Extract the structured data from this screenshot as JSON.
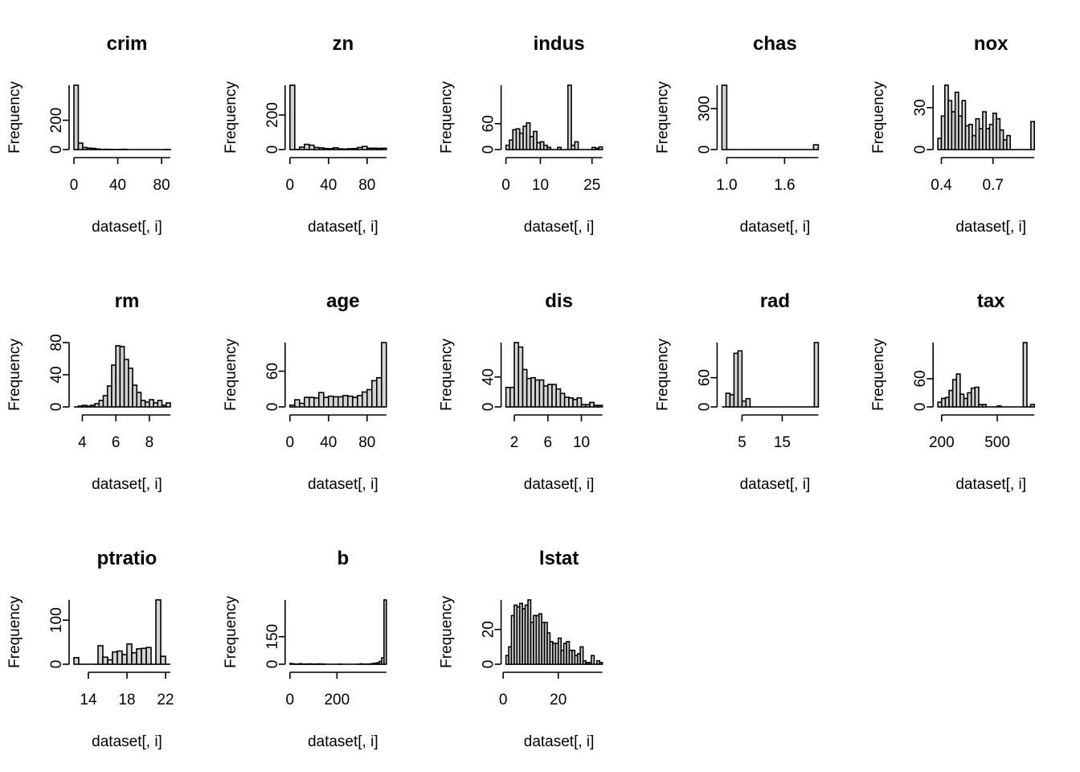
{
  "figure": {
    "background": "#ffffff",
    "bar_fill": "#d3d3d3",
    "bar_stroke": "#000000"
  },
  "chart_data": [
    {
      "type": "bar",
      "title": "crim",
      "xlabel": "dataset[, i]",
      "ylabel": "Frequency",
      "bin_start": 0,
      "bin_width": 4,
      "values": [
        439,
        44,
        14,
        10,
        8,
        4,
        1,
        2,
        1,
        0,
        1,
        2,
        0,
        0,
        0,
        0,
        0,
        0,
        0,
        0,
        0,
        1
      ],
      "xticks": [
        0,
        40,
        80
      ],
      "yticks": [
        0,
        200
      ],
      "xlim": [
        0,
        90
      ],
      "ylim": [
        0,
        439
      ]
    },
    {
      "type": "bar",
      "title": "zn",
      "xlabel": "dataset[, i]",
      "ylabel": "Frequency",
      "bin_start": 0,
      "bin_width": 5,
      "values": [
        372,
        1,
        14,
        30,
        25,
        12,
        10,
        6,
        5,
        10,
        4,
        3,
        5,
        6,
        12,
        18,
        8,
        8,
        7,
        8
      ],
      "xticks": [
        0,
        40,
        80
      ],
      "yticks": [
        0,
        200
      ],
      "xlim": [
        0,
        100
      ],
      "ylim": [
        0,
        372
      ]
    },
    {
      "type": "bar",
      "title": "indus",
      "xlabel": "dataset[, i]",
      "ylabel": "Frequency",
      "bin_start": 0,
      "bin_width": 1,
      "values": [
        10,
        22,
        46,
        48,
        38,
        54,
        62,
        30,
        42,
        16,
        18,
        10,
        5,
        0,
        0,
        5,
        0,
        0,
        149,
        10,
        18,
        0,
        0,
        0,
        0,
        5,
        3,
        6
      ],
      "xticks": [
        0,
        10,
        25
      ],
      "yticks": [
        0,
        60
      ],
      "xlim": [
        0,
        28
      ],
      "ylim": [
        0,
        149
      ]
    },
    {
      "type": "bar",
      "title": "chas",
      "xlabel": "dataset[, i]",
      "ylabel": "Frequency",
      "bin_start": 0.95,
      "bin_width": 0.05,
      "values": [
        471,
        0,
        0,
        0,
        0,
        0,
        0,
        0,
        0,
        0,
        0,
        0,
        0,
        0,
        0,
        0,
        0,
        0,
        0,
        35
      ],
      "xticks": [
        "1.0",
        "1.6"
      ],
      "yticks": [
        0,
        300
      ],
      "xlim": [
        1,
        2
      ],
      "ylim": [
        0,
        471
      ]
    },
    {
      "type": "bar",
      "title": "nox",
      "xlabel": "dataset[, i]",
      "ylabel": "Frequency",
      "bin_start": 0.38,
      "bin_width": 0.02,
      "values": [
        8,
        24,
        46,
        35,
        27,
        41,
        24,
        35,
        17,
        18,
        10,
        22,
        15,
        27,
        15,
        18,
        26,
        22,
        14,
        7,
        10,
        0,
        0,
        0,
        0,
        0,
        0,
        20
      ],
      "xticks": [
        "0.4",
        "0.7"
      ],
      "yticks": [
        0,
        30
      ],
      "xlim": [
        0.38,
        0.88
      ],
      "ylim": [
        0,
        46
      ]
    },
    {
      "type": "bar",
      "title": "rm",
      "xlabel": "dataset[, i]",
      "ylabel": "Frequency",
      "bin_start": 3.5,
      "bin_width": 0.25,
      "values": [
        0,
        1,
        2,
        1,
        2,
        4,
        8,
        14,
        26,
        52,
        76,
        75,
        59,
        48,
        27,
        18,
        8,
        6,
        9,
        5,
        8,
        2,
        5
      ],
      "xticks": [
        4,
        6,
        8
      ],
      "yticks": [
        0,
        40,
        80
      ],
      "xlim": [
        3.5,
        9.25
      ],
      "ylim": [
        0,
        80
      ]
    },
    {
      "type": "bar",
      "title": "age",
      "xlabel": "dataset[, i]",
      "ylabel": "Frequency",
      "bin_start": 0,
      "bin_width": 5,
      "values": [
        3,
        12,
        6,
        16,
        16,
        15,
        24,
        16,
        18,
        17,
        17,
        19,
        18,
        16,
        19,
        25,
        29,
        44,
        49,
        108
      ],
      "xticks": [
        0,
        40,
        80
      ],
      "yticks": [
        0,
        60
      ],
      "xlim": [
        0,
        100
      ],
      "ylim": [
        0,
        108
      ]
    },
    {
      "type": "bar",
      "title": "dis",
      "xlabel": "dataset[, i]",
      "ylabel": "Frequency",
      "bin_start": 1,
      "bin_width": 0.5,
      "values": [
        26,
        26,
        86,
        80,
        50,
        38,
        39,
        36,
        36,
        28,
        30,
        30,
        24,
        18,
        13,
        12,
        10,
        12,
        3,
        3,
        6,
        2,
        2
      ],
      "xticks": [
        2,
        6,
        10
      ],
      "yticks": [
        0,
        40
      ],
      "xlim": [
        1,
        12.5
      ],
      "ylim": [
        0,
        86
      ]
    },
    {
      "type": "bar",
      "title": "rad",
      "xlabel": "dataset[, i]",
      "ylabel": "Frequency",
      "bin_start": 0,
      "bin_width": 1,
      "values": [
        0,
        28,
        25,
        110,
        115,
        12,
        17,
        0,
        0,
        0,
        0,
        0,
        0,
        0,
        0,
        0,
        0,
        0,
        0,
        0,
        0,
        0,
        0,
        132
      ],
      "xticks": [
        5,
        15
      ],
      "yticks": [
        0,
        60
      ],
      "xlim": [
        0,
        24
      ],
      "ylim": [
        0,
        132
      ]
    },
    {
      "type": "bar",
      "title": "tax",
      "xlabel": "dataset[, i]",
      "ylabel": "Frequency",
      "bin_start": 180,
      "bin_width": 20,
      "values": [
        10,
        18,
        20,
        35,
        58,
        70,
        27,
        18,
        30,
        40,
        42,
        5,
        5,
        0,
        0,
        0,
        2,
        0,
        0,
        0,
        0,
        0,
        0,
        137,
        0,
        5
      ],
      "xticks": [
        200,
        500
      ],
      "yticks": [
        0,
        60
      ],
      "xlim": [
        180,
        720
      ],
      "ylim": [
        0,
        137
      ]
    },
    {
      "type": "bar",
      "title": "ptratio",
      "xlabel": "dataset[, i]",
      "ylabel": "Frequency",
      "bin_start": 12.5,
      "bin_width": 0.5,
      "values": [
        15,
        0,
        0,
        0,
        0,
        42,
        16,
        10,
        28,
        30,
        22,
        46,
        26,
        35,
        36,
        38,
        0,
        146,
        18,
        0
      ],
      "xticks": [
        14,
        18,
        22
      ],
      "yticks": [
        0,
        100
      ],
      "xlim": [
        12.5,
        22.5
      ],
      "ylim": [
        0,
        146
      ]
    },
    {
      "type": "bar",
      "title": "b",
      "xlabel": "dataset[, i]",
      "ylabel": "Frequency",
      "bin_start": 0,
      "bin_width": 10,
      "values": [
        4,
        2,
        1,
        1,
        3,
        1,
        1,
        1,
        2,
        1,
        1,
        1,
        2,
        1,
        1,
        0,
        0,
        0,
        0,
        0,
        0,
        1,
        0,
        0,
        0,
        0,
        0,
        0,
        0,
        1,
        2,
        0,
        1,
        1,
        2,
        4,
        6,
        8,
        15,
        35,
        350
      ],
      "xticks": [
        0,
        200
      ],
      "yticks": [
        0,
        150
      ],
      "xlim": [
        0,
        410
      ],
      "ylim": [
        0,
        350
      ]
    },
    {
      "type": "bar",
      "title": "lstat",
      "xlabel": "dataset[, i]",
      "ylabel": "Frequency",
      "bin_start": 1,
      "bin_width": 1,
      "values": [
        5,
        10,
        28,
        34,
        33,
        35,
        32,
        34,
        37,
        24,
        28,
        28,
        29,
        24,
        24,
        18,
        13,
        12,
        12,
        15,
        8,
        12,
        13,
        8,
        8,
        5,
        6,
        10,
        2,
        1,
        1,
        5,
        0,
        2,
        1
      ],
      "xticks": [
        0,
        20
      ],
      "yticks": [
        0,
        20
      ],
      "xlim": [
        1,
        38
      ],
      "ylim": [
        0,
        37
      ]
    }
  ]
}
